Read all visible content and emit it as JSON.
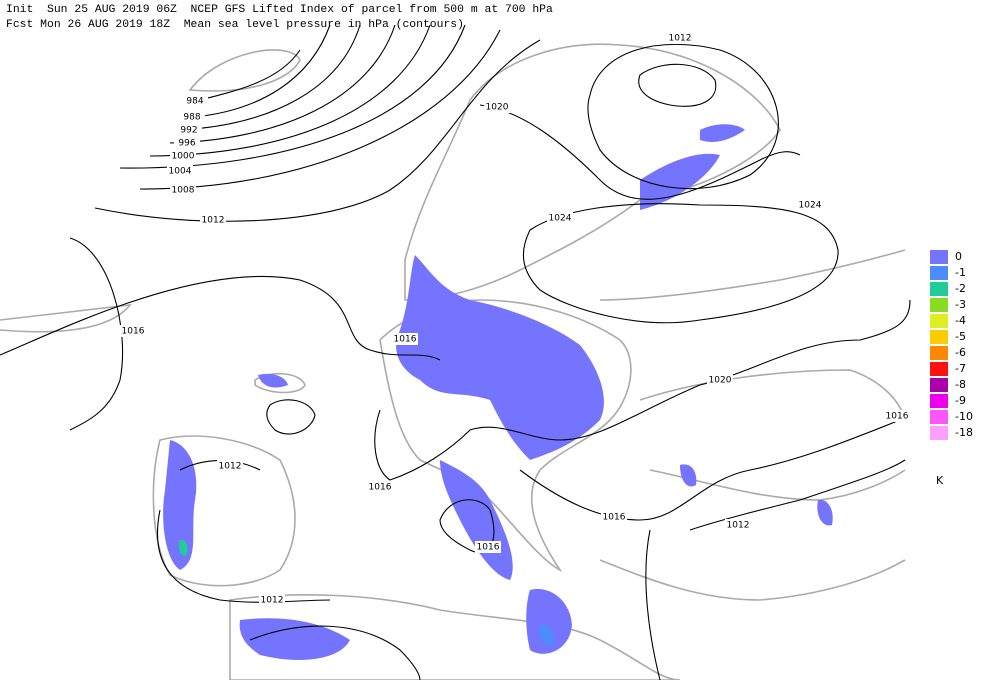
{
  "header": {
    "line1": "Init  Sun 25 AUG 2019 06Z  NCEP GFS Lifted Index of parcel from 500 m at 700 hPa",
    "line2": "Fcst Mon 26 AUG 2019 18Z  Mean sea level pressure in hPa (contours)"
  },
  "contour_labels": [
    "984",
    "988",
    "992",
    "996",
    "1000",
    "1004",
    "1008",
    "1012",
    "1016",
    "1016",
    "1020",
    "1024",
    "1024",
    "1012",
    "1020",
    "1016",
    "1012",
    "1016",
    "1016",
    "1012",
    "1016",
    "1012"
  ],
  "legend": {
    "items": [
      {
        "label": "0",
        "color": "#7474ff"
      },
      {
        "label": "-1",
        "color": "#4c8cff"
      },
      {
        "label": "-2",
        "color": "#22cc99"
      },
      {
        "label": "-3",
        "color": "#88dd22"
      },
      {
        "label": "-4",
        "color": "#ddee22"
      },
      {
        "label": "-5",
        "color": "#ffcc00"
      },
      {
        "label": "-6",
        "color": "#ff8800"
      },
      {
        "label": "-7",
        "color": "#ff1111"
      },
      {
        "label": "-8",
        "color": "#aa00aa"
      },
      {
        "label": "-9",
        "color": "#ee00ee"
      },
      {
        "label": "-10",
        "color": "#ff55ff"
      },
      {
        "label": "-18",
        "color": "#ffa0ff"
      }
    ],
    "unit": "K"
  }
}
